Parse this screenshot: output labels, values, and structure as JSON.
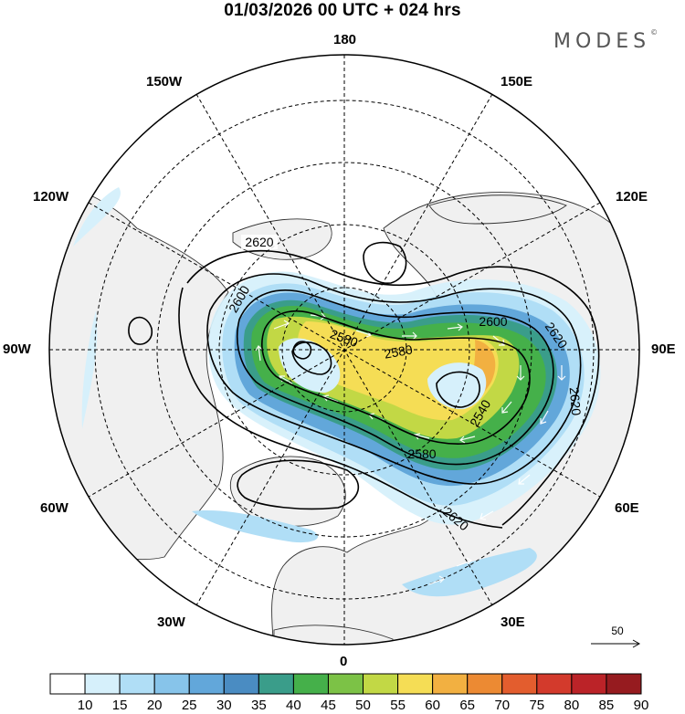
{
  "title": "01/03/2026  00 UTC  + 024 hrs",
  "logo": {
    "text": "MODES",
    "mark": "©"
  },
  "longitude_labels": {
    "top": "180",
    "bottom": "0",
    "left": "90W",
    "right": "90E",
    "upper_left_1": "150W",
    "upper_left_2": "120W",
    "lower_left_1": "60W",
    "lower_left_2": "30W",
    "upper_right_1": "150E",
    "upper_right_2": "120E",
    "lower_right_1": "60E",
    "lower_right_2": "30E"
  },
  "contour_labels": [
    "2620",
    "2600",
    "2580",
    "2580",
    "2600",
    "2620",
    "2620",
    "2540",
    "2580",
    "2620"
  ],
  "reference_vector": {
    "label": "50"
  },
  "colorbar": {
    "labels": [
      "10",
      "15",
      "20",
      "25",
      "30",
      "35",
      "40",
      "45",
      "50",
      "55",
      "60",
      "65",
      "70",
      "75",
      "80",
      "85",
      "90"
    ],
    "colors": [
      "#ffffff",
      "#d6f0fb",
      "#b0def6",
      "#87c4ea",
      "#62a7da",
      "#4a8cc2",
      "#3a9d8a",
      "#45b04a",
      "#7cc246",
      "#c2d845",
      "#f5dd55",
      "#f2b041",
      "#ec8a33",
      "#e35d2e",
      "#d33a2c",
      "#bb2328",
      "#961b1f"
    ]
  },
  "legend_colors": {
    "land": "#f2f2f2",
    "ocean": "#ffffff",
    "coast": "#2a2a2a",
    "contour": "#000000"
  }
}
